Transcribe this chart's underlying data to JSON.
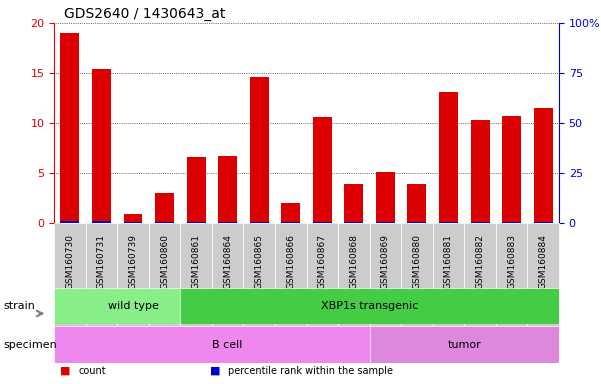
{
  "title": "GDS2640 / 1430643_at",
  "samples": [
    "GSM160730",
    "GSM160731",
    "GSM160739",
    "GSM160860",
    "GSM160861",
    "GSM160864",
    "GSM160865",
    "GSM160866",
    "GSM160867",
    "GSM160868",
    "GSM160869",
    "GSM160880",
    "GSM160881",
    "GSM160882",
    "GSM160883",
    "GSM160884"
  ],
  "count_values": [
    19.0,
    15.4,
    0.9,
    3.0,
    6.6,
    6.7,
    14.6,
    2.0,
    10.6,
    3.9,
    5.1,
    3.9,
    13.1,
    10.3,
    10.7,
    11.5
  ],
  "percentile_values": [
    0.72,
    0.72,
    0.18,
    0.54,
    0.54,
    0.36,
    0.54,
    0.18,
    0.36,
    0.18,
    0.18,
    0.18,
    0.36,
    0.36,
    0.36,
    0.36
  ],
  "ylim_left": [
    0,
    20
  ],
  "ylim_right": [
    0,
    100
  ],
  "left_yticks": [
    0,
    5,
    10,
    15,
    20
  ],
  "right_yticks": [
    0,
    25,
    50,
    75,
    100
  ],
  "right_yticklabels": [
    "0",
    "25",
    "50",
    "75",
    "100%"
  ],
  "bar_color_red": "#dd0000",
  "bar_color_blue": "#0000cc",
  "grid_color": "#000000",
  "bg_color": "#ffffff",
  "tick_bg": "#dddddd",
  "strain_groups": [
    {
      "label": "wild type",
      "start": 0,
      "end": 4,
      "color": "#88ee88"
    },
    {
      "label": "XBP1s transgenic",
      "start": 4,
      "end": 15,
      "color": "#44cc44"
    }
  ],
  "specimen_groups": [
    {
      "label": "B cell",
      "start": 0,
      "end": 10,
      "color": "#ee88ee"
    },
    {
      "label": "tumor",
      "start": 10,
      "end": 15,
      "color": "#dd88dd"
    }
  ],
  "legend_items": [
    {
      "color": "#dd0000",
      "label": "count"
    },
    {
      "color": "#0000cc",
      "label": "percentile rank within the sample"
    }
  ],
  "bar_width": 0.6
}
